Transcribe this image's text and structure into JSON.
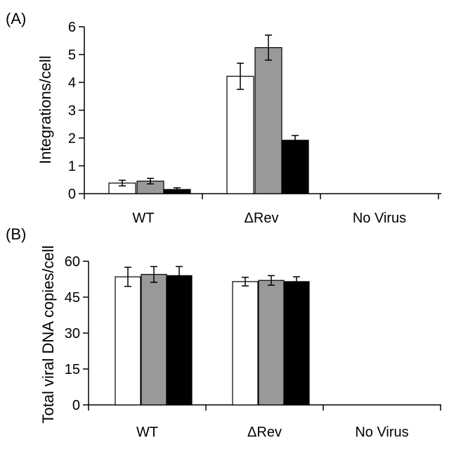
{
  "chart_data": [
    {
      "panel_label": "(A)",
      "type": "bar",
      "ylabel": "Integrations/cell",
      "xlabel": "",
      "categories": [
        "WT",
        "ΔRev",
        "No Virus"
      ],
      "ylim": [
        0,
        6
      ],
      "yticks": [
        "0",
        "1",
        "2",
        "3",
        "4",
        "5",
        "6"
      ],
      "grid": false,
      "legend": "none",
      "series": [
        {
          "color": "#ffffff",
          "values": [
            0.38,
            4.22,
            0
          ],
          "errors": [
            0.1,
            0.47,
            0
          ]
        },
        {
          "color": "#999999",
          "values": [
            0.45,
            5.25,
            0
          ],
          "errors": [
            0.1,
            0.45,
            0
          ]
        },
        {
          "color": "#000000",
          "values": [
            0.15,
            1.92,
            0
          ],
          "errors": [
            0.06,
            0.17,
            0
          ]
        }
      ]
    },
    {
      "panel_label": "(B)",
      "type": "bar",
      "ylabel": "Total viral DNA copies/cell",
      "xlabel": "",
      "categories": [
        "WT",
        "ΔRev",
        "No Virus"
      ],
      "ylim": [
        0,
        60
      ],
      "yticks": [
        "0",
        "15",
        "30",
        "45",
        "60"
      ],
      "grid": false,
      "legend": "none",
      "series": [
        {
          "color": "#ffffff",
          "values": [
            53.5,
            51.5,
            0
          ],
          "errors": [
            4.0,
            1.8,
            0
          ]
        },
        {
          "color": "#999999",
          "values": [
            54.5,
            52.0,
            0
          ],
          "errors": [
            3.3,
            2.0,
            0
          ]
        },
        {
          "color": "#000000",
          "values": [
            54.0,
            51.5,
            0
          ],
          "errors": [
            3.8,
            2.0,
            0
          ]
        }
      ]
    }
  ]
}
